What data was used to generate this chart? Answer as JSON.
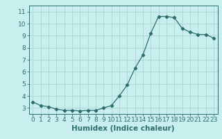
{
  "x": [
    0,
    1,
    2,
    3,
    4,
    5,
    6,
    7,
    8,
    9,
    10,
    11,
    12,
    13,
    14,
    15,
    16,
    17,
    18,
    19,
    20,
    21,
    22,
    23
  ],
  "y": [
    3.5,
    3.2,
    3.1,
    2.9,
    2.8,
    2.8,
    2.75,
    2.8,
    2.8,
    3.0,
    3.2,
    4.0,
    4.9,
    6.3,
    7.4,
    9.2,
    10.6,
    10.6,
    10.5,
    9.6,
    9.3,
    9.1,
    9.1,
    8.8
  ],
  "line_color": "#2d6e6e",
  "marker": "D",
  "marker_size": 2.2,
  "bg_color": "#c8eeee",
  "grid_color": "#afd8d4",
  "xlabel": "Humidex (Indice chaleur)",
  "ylim": [
    2.5,
    11.5
  ],
  "xlim": [
    -0.5,
    23.5
  ],
  "yticks": [
    3,
    4,
    5,
    6,
    7,
    8,
    9,
    10,
    11
  ],
  "xticks": [
    0,
    1,
    2,
    3,
    4,
    5,
    6,
    7,
    8,
    9,
    10,
    11,
    12,
    13,
    14,
    15,
    16,
    17,
    18,
    19,
    20,
    21,
    22,
    23
  ],
  "tick_color": "#2d6e6e",
  "label_fontsize": 6.5,
  "xlabel_fontsize": 7.5
}
